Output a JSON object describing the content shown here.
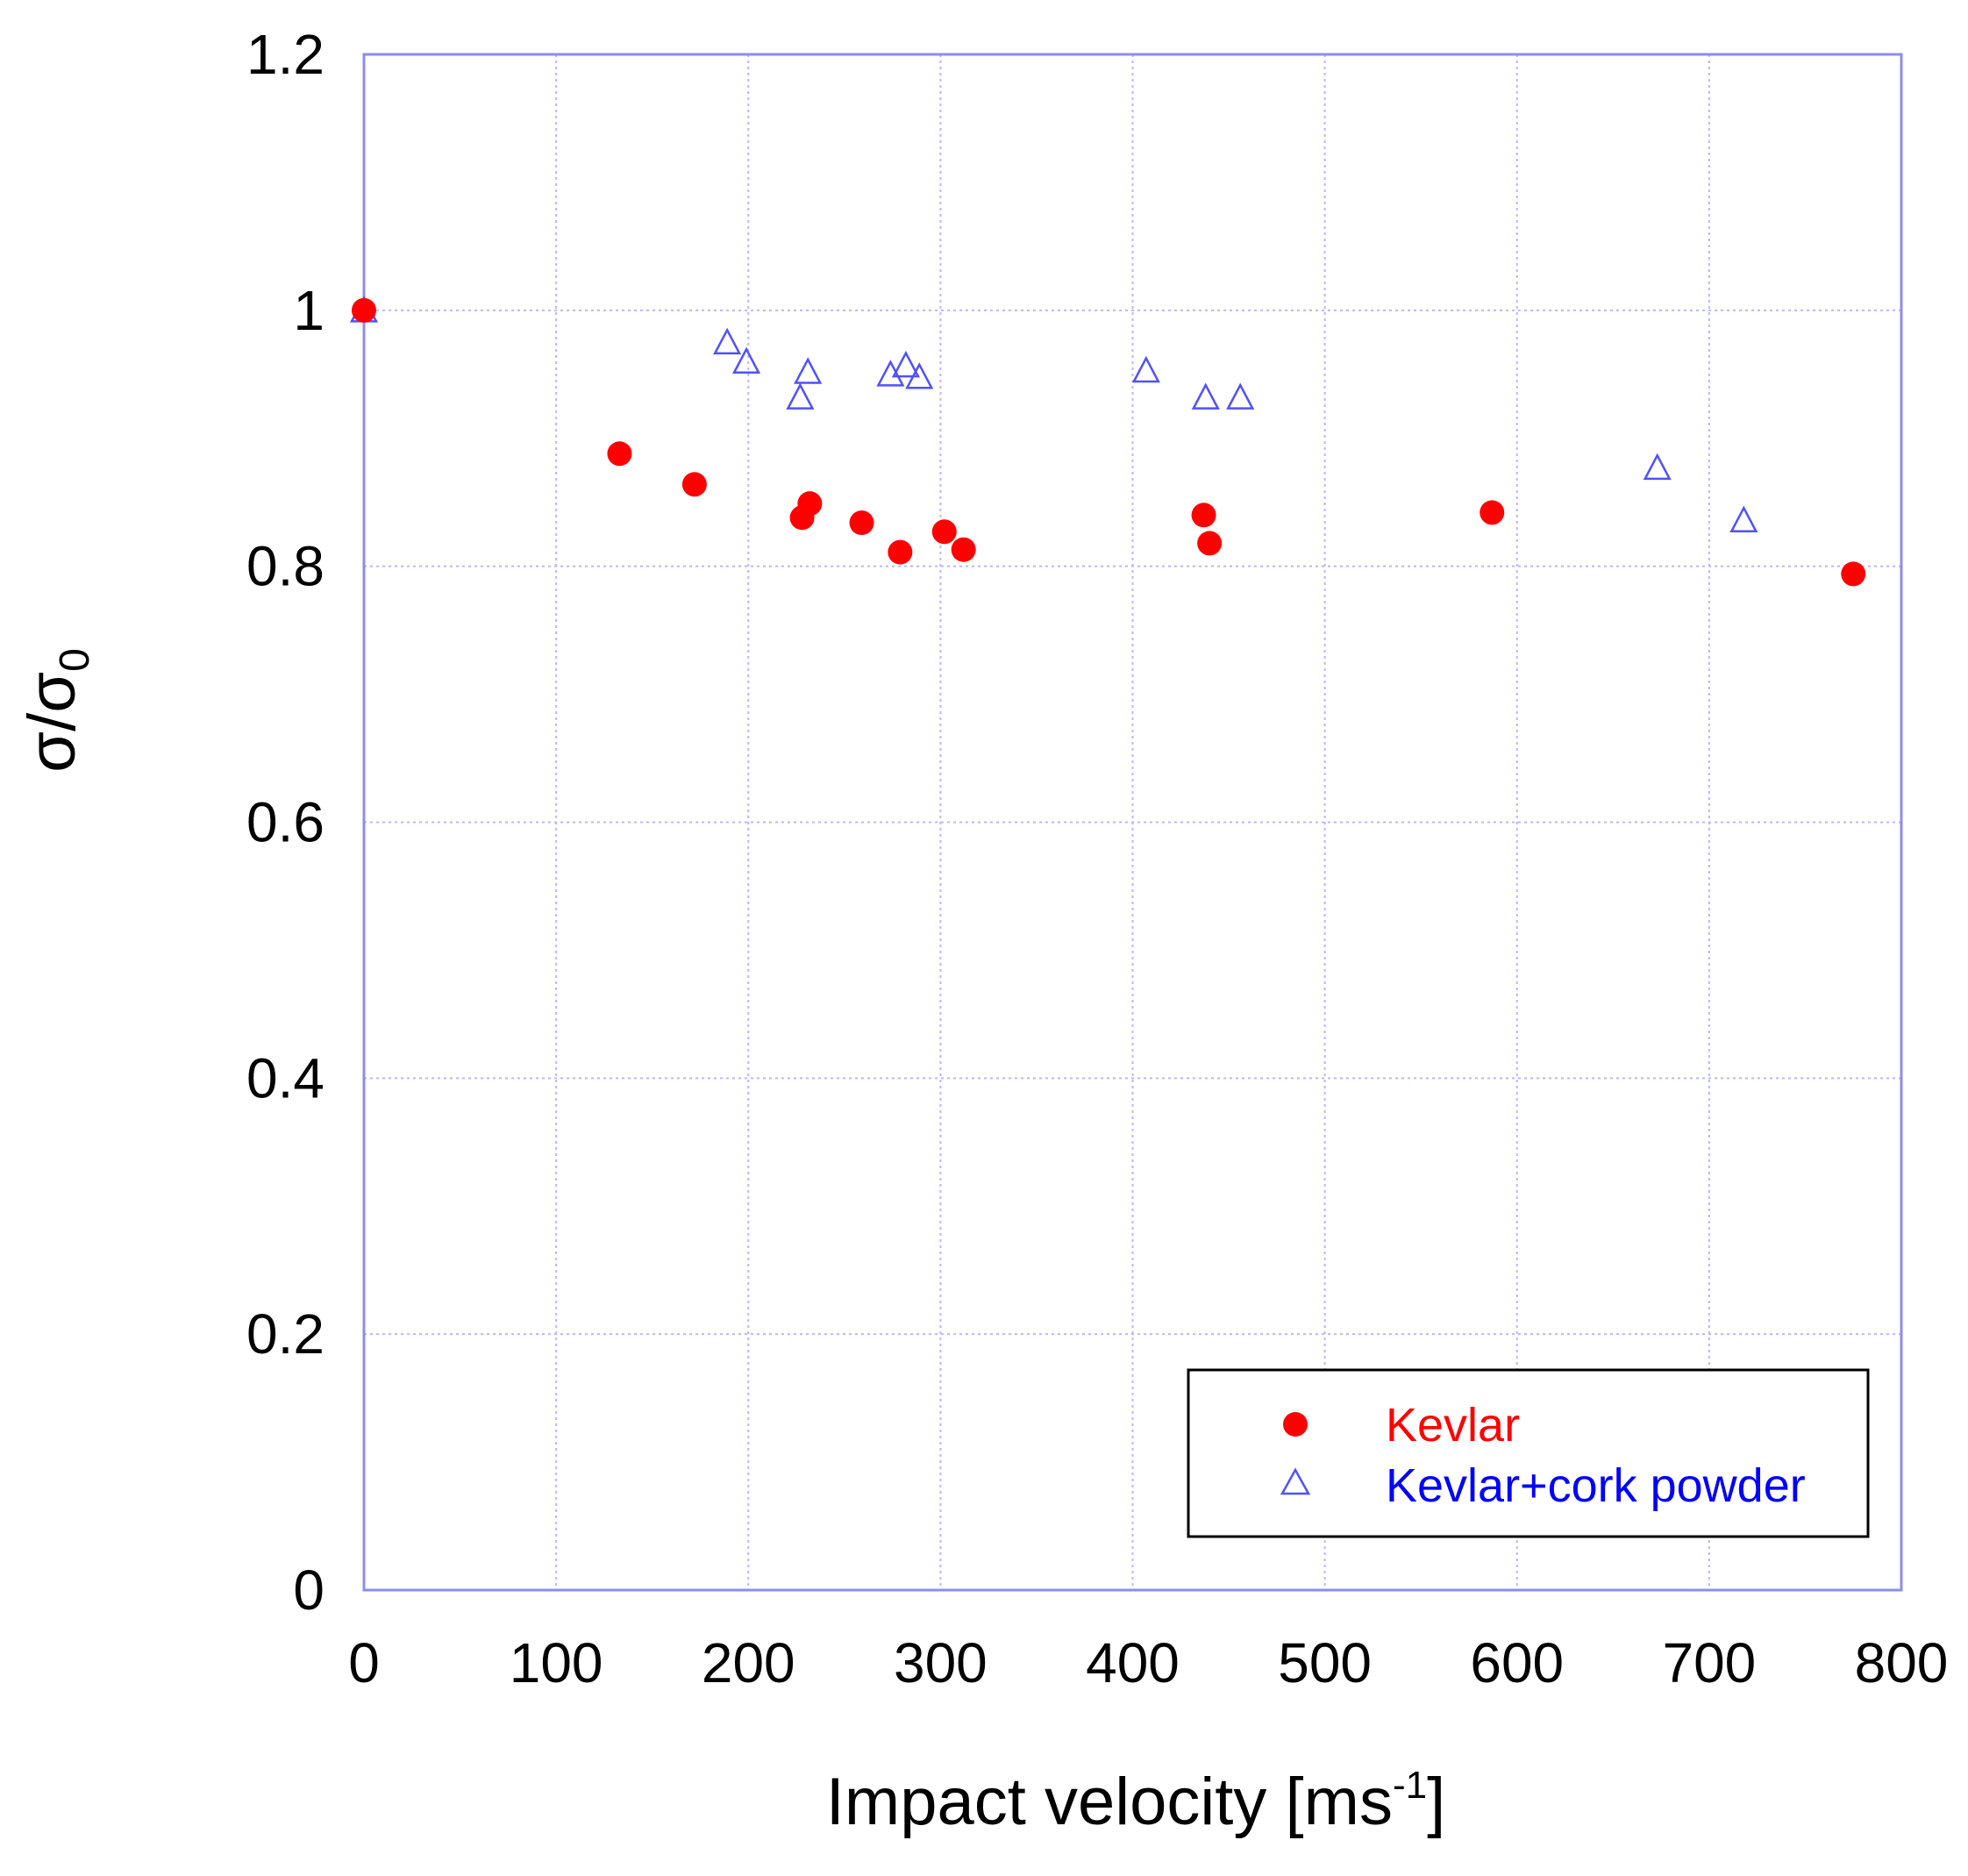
{
  "chart_data": {
    "type": "scatter",
    "title": "",
    "xlabel": "Impact velocity [ms",
    "xlabel_superscript": "-1",
    "xlabel_close": "]",
    "ylabel": "σ/σ",
    "ylabel_subscript": "0",
    "xlim": [
      0,
      800
    ],
    "ylim": [
      0,
      1.2
    ],
    "xticks": [
      "0",
      "100",
      "200",
      "300",
      "400",
      "500",
      "600",
      "700",
      "800"
    ],
    "yticks": [
      "0",
      "0.2",
      "0.4",
      "0.6",
      "0.8",
      "1",
      "1.2"
    ],
    "grid": true,
    "legend_position": "bottom-right",
    "series": [
      {
        "name": "Kevlar",
        "marker": "filled-circle",
        "color": "#ff0000",
        "x": [
          0,
          133,
          172,
          228,
          232,
          259,
          279,
          302,
          312,
          437,
          440,
          587,
          775
        ],
        "y": [
          1.0,
          0.888,
          0.864,
          0.838,
          0.849,
          0.834,
          0.811,
          0.827,
          0.813,
          0.84,
          0.818,
          0.842,
          0.794
        ]
      },
      {
        "name": "Kevlar+cork powder",
        "marker": "open-triangle",
        "color": "#5050ff",
        "x": [
          0,
          189,
          199,
          227,
          231,
          274,
          282,
          289,
          407,
          438,
          456,
          673,
          718
        ],
        "y": [
          1.0,
          0.975,
          0.96,
          0.932,
          0.952,
          0.95,
          0.957,
          0.948,
          0.953,
          0.932,
          0.932,
          0.877,
          0.836
        ]
      }
    ]
  },
  "colors": {
    "grid": "#b8b8ff",
    "axis_frame": "#8c8cf0",
    "legend_text_kevlar": "#ff0000",
    "legend_text_cork": "#0000ff"
  }
}
